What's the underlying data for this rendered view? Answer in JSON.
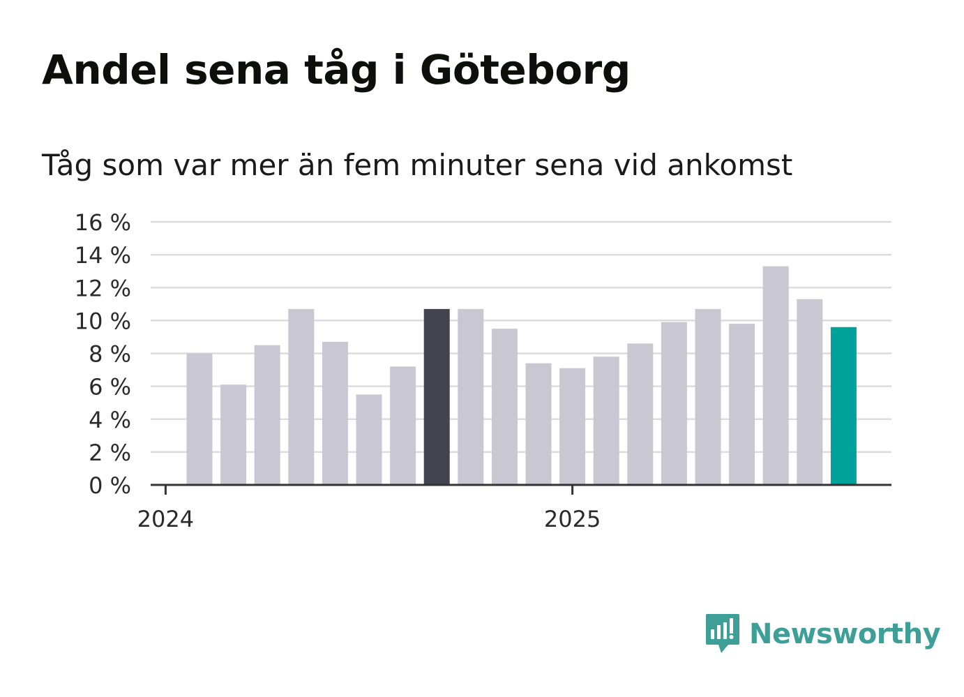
{
  "title": "Andel sena tåg i Göteborg",
  "subtitle": "Tåg som var mer än fem minuter sena vid ankomst",
  "brand": {
    "name": "Newsworthy",
    "color": "#3d9f97",
    "icon": "newsworthy-logo-icon"
  },
  "colors": {
    "bar": "#c8c7d2",
    "highlight": "#43424f",
    "latest": "#00a29a",
    "grid": "#dcdcdc",
    "axis": "#333333"
  },
  "chart_data": {
    "type": "bar",
    "ylim": [
      0,
      16
    ],
    "yticks": [
      0,
      2,
      4,
      6,
      8,
      10,
      12,
      14,
      16
    ],
    "ytick_labels": [
      "0 %",
      "2 %",
      "4 %",
      "6 %",
      "8 %",
      "10 %",
      "12 %",
      "14 %",
      "16 %"
    ],
    "xtick_labels": [
      "2024",
      "2025"
    ],
    "xtick_positions": [
      "2024-01",
      "2025-01"
    ],
    "categories": [
      "2024-02",
      "2024-03",
      "2024-04",
      "2024-05",
      "2024-06",
      "2024-07",
      "2024-08",
      "2024-09",
      "2024-10",
      "2024-11",
      "2024-12",
      "2025-01",
      "2025-02",
      "2025-03",
      "2025-04",
      "2025-05",
      "2025-06",
      "2025-07",
      "2025-08",
      "2025-09"
    ],
    "values": [
      8.0,
      6.1,
      8.5,
      10.7,
      8.7,
      5.5,
      7.2,
      10.7,
      10.7,
      9.5,
      7.4,
      7.1,
      7.8,
      8.6,
      9.9,
      10.7,
      9.8,
      13.3,
      11.3,
      9.6
    ],
    "highlight_category": "2024-09",
    "latest_category": "2025-09",
    "grid": true,
    "xlabel": "",
    "ylabel": ""
  }
}
